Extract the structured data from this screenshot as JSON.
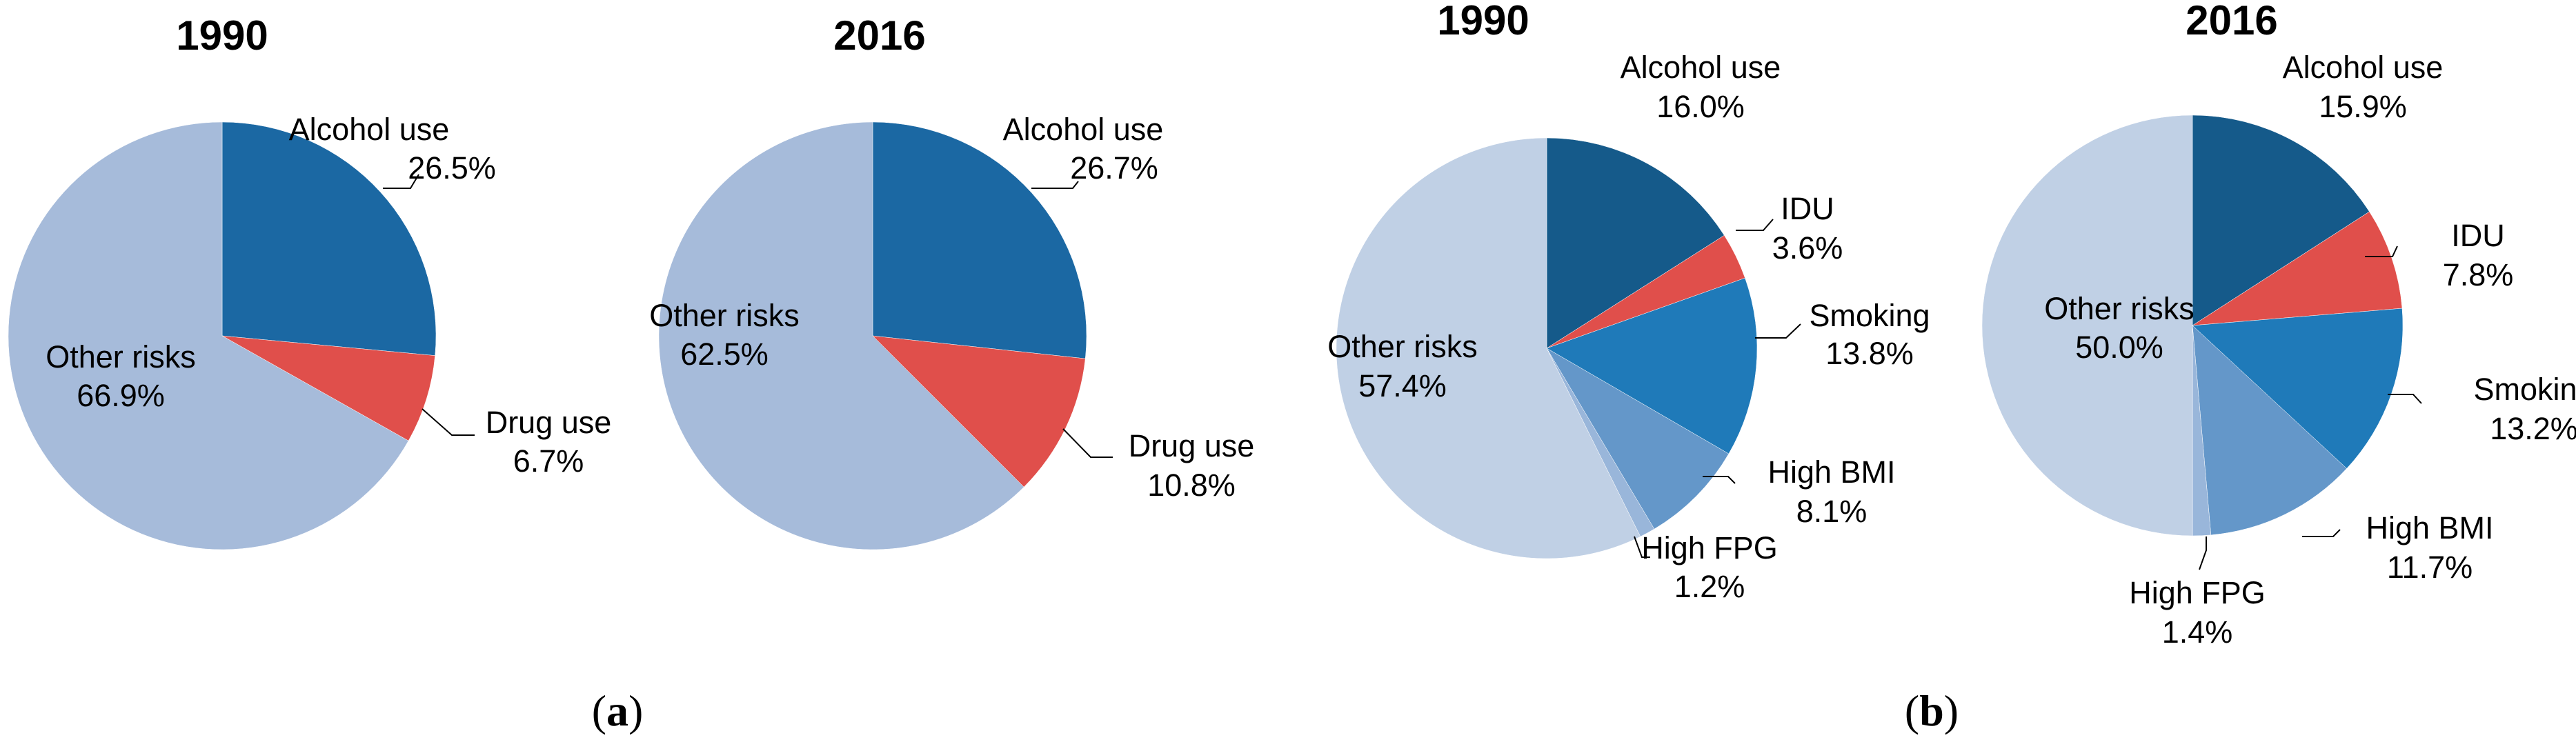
{
  "chart_data": [
    {
      "type": "pie",
      "title": "1990",
      "panel": "a",
      "slices": [
        {
          "label": "Alcohol use",
          "value": 26.5,
          "value_label": "26.5%",
          "color": "#1b68a3"
        },
        {
          "label": "Drug use",
          "value": 6.7,
          "value_label": "6.7%",
          "color": "#e04f4b"
        },
        {
          "label": "Other risks",
          "value": 66.9,
          "value_label": "66.9%",
          "color": "#a6bbda"
        }
      ]
    },
    {
      "type": "pie",
      "title": "2016",
      "panel": "a",
      "slices": [
        {
          "label": "Alcohol use",
          "value": 26.7,
          "value_label": "26.7%",
          "color": "#1b68a3"
        },
        {
          "label": "Drug use",
          "value": 10.8,
          "value_label": "10.8%",
          "color": "#e04f4b"
        },
        {
          "label": "Other risks",
          "value": 62.5,
          "value_label": "62.5%",
          "color": "#a6bbda"
        }
      ]
    },
    {
      "type": "pie",
      "title": "1990",
      "panel": "b",
      "slices": [
        {
          "label": "Alcohol use",
          "value": 16.0,
          "value_label": "16.0%",
          "color": "#155a8a"
        },
        {
          "label": "IDU",
          "value": 3.6,
          "value_label": "3.6%",
          "color": "#e04f4b"
        },
        {
          "label": "Smoking",
          "value": 13.8,
          "value_label": "13.8%",
          "color": "#1f7ab9"
        },
        {
          "label": "High BMI",
          "value": 8.1,
          "value_label": "8.1%",
          "color": "#6497c9"
        },
        {
          "label": "High FPG",
          "value": 1.2,
          "value_label": "1.2%",
          "color": "#99b6da"
        },
        {
          "label": "Other risks",
          "value": 57.4,
          "value_label": "57.4%",
          "color": "#c0d0e5"
        }
      ]
    },
    {
      "type": "pie",
      "title": "2016",
      "panel": "b",
      "slices": [
        {
          "label": "Alcohol use",
          "value": 15.9,
          "value_label": "15.9%",
          "color": "#155a8a"
        },
        {
          "label": "IDU",
          "value": 7.8,
          "value_label": "7.8%",
          "color": "#e04f4b"
        },
        {
          "label": "Smoking",
          "value": 13.2,
          "value_label": "13.2%",
          "color": "#1f7ab9"
        },
        {
          "label": "High BMI",
          "value": 11.7,
          "value_label": "11.7%",
          "color": "#6497c9"
        },
        {
          "label": "High FPG",
          "value": 1.4,
          "value_label": "1.4%",
          "color": "#99b6da"
        },
        {
          "label": "Other risks",
          "value": 50.0,
          "value_label": "50.0%",
          "color": "#c0d0e5"
        }
      ]
    }
  ],
  "panel_labels": [
    {
      "open": "(",
      "letter": "a",
      "close": ")"
    },
    {
      "open": "(",
      "letter": "b",
      "close": ")"
    }
  ]
}
